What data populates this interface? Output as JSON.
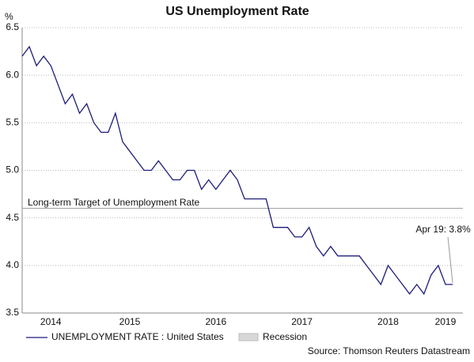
{
  "chart_data": {
    "type": "line",
    "title": "US Unemployment Rate",
    "y_unit": "%",
    "categories": [
      null,
      null,
      null,
      null,
      "2014",
      null,
      null,
      null,
      null,
      null,
      null,
      null,
      null,
      null,
      null,
      "2015",
      null,
      null,
      null,
      null,
      null,
      null,
      null,
      null,
      null,
      null,
      null,
      "2016",
      null,
      null,
      null,
      null,
      null,
      null,
      null,
      null,
      null,
      null,
      null,
      "2017",
      null,
      null,
      null,
      null,
      null,
      null,
      null,
      null,
      null,
      null,
      null,
      "2018",
      null,
      null,
      null,
      null,
      null,
      null,
      null,
      "2019",
      null
    ],
    "series": [
      {
        "name": "UNEMPLOYMENT RATE : United States",
        "color": "#1c1c7a",
        "values": [
          6.2,
          6.3,
          6.1,
          6.2,
          6.1,
          5.9,
          5.7,
          5.8,
          5.6,
          5.7,
          5.5,
          5.4,
          5.4,
          5.6,
          5.3,
          5.2,
          5.1,
          5.0,
          5.0,
          5.1,
          5.0,
          4.9,
          4.9,
          5.0,
          5.0,
          4.8,
          4.9,
          4.8,
          4.9,
          5.0,
          4.9,
          4.7,
          4.7,
          4.7,
          4.7,
          4.4,
          4.4,
          4.4,
          4.3,
          4.3,
          4.4,
          4.2,
          4.1,
          4.2,
          4.1,
          4.1,
          4.1,
          4.1,
          4.0,
          3.9,
          3.8,
          4.0,
          3.9,
          3.8,
          3.7,
          3.8,
          3.7,
          3.9,
          4.0,
          3.8,
          3.8
        ]
      }
    ],
    "ylim": [
      3.5,
      6.5
    ],
    "yticks": [
      3.5,
      {
        "value": 4,
        "label": "4.0"
      },
      4.5,
      {
        "value": 5,
        "label": "5.0"
      },
      5.5,
      {
        "value": 6,
        "label": "6.0"
      },
      6.5
    ],
    "grid": true,
    "reference_line": {
      "value": 4.6,
      "label": "Long-term Target of Unemployment Rate",
      "color": "#999999"
    },
    "annotation": {
      "text": "Apr 19: 3.8%",
      "index": 60
    },
    "recession_legend": {
      "label": "Recession",
      "color": "#d8d8d8"
    },
    "source": "Source: Thomson Reuters Datastream"
  }
}
